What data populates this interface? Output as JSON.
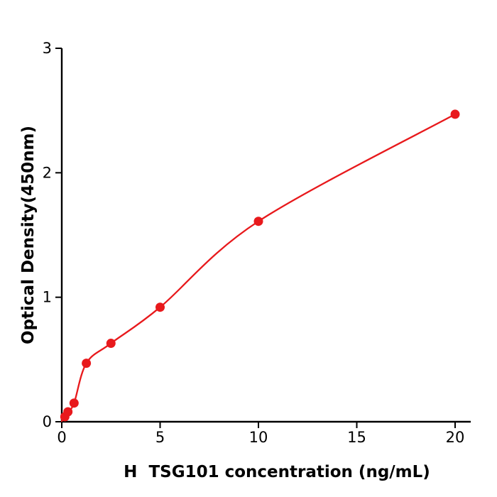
{
  "figure": {
    "background_color": "#ffffff",
    "accent_color": "#e8191c",
    "axis_color": "#000000"
  },
  "chart_data": {
    "type": "scatter",
    "title": "",
    "xlabel": "H  TSG101 concentration (ng/mL)",
    "ylabel": "Optical Density(450nm)",
    "x": [
      0.156,
      0.313,
      0.625,
      1.25,
      2.5,
      5,
      10,
      20
    ],
    "y": [
      0.04,
      0.08,
      0.15,
      0.47,
      0.63,
      0.92,
      1.61,
      2.47
    ],
    "fit_line": true,
    "marker": "circle",
    "point_color": "#e8191c",
    "line_color": "#e8191c",
    "axis_color": "#000000",
    "xlim": [
      0,
      20
    ],
    "ylim": [
      0,
      3
    ],
    "x_ticks": [
      0,
      5,
      10,
      15,
      20
    ],
    "y_ticks": [
      0,
      1,
      2,
      3
    ],
    "grid": false,
    "legend": false
  }
}
